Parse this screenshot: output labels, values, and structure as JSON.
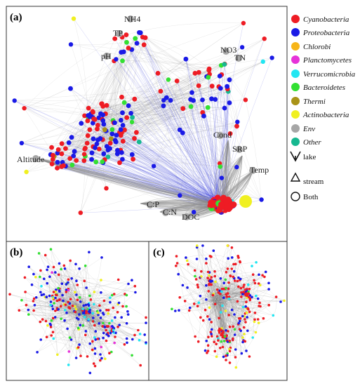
{
  "figure": {
    "panels": [
      {
        "id": "a",
        "label": "(a)"
      },
      {
        "id": "b",
        "label": "(b)"
      },
      {
        "id": "c",
        "label": "(c)"
      }
    ],
    "env_labels": [
      "NH4",
      "TP",
      "pH",
      "NO3",
      "TN",
      "Cond",
      "SRP",
      "Temp",
      "Altitude",
      "C:P",
      "C:N",
      "DOC"
    ],
    "legend": {
      "groups": [
        {
          "label": "Cyanobacteria",
          "color": "#ee1c24",
          "italic": true
        },
        {
          "label": "Proteobacteria",
          "color": "#1a1ae6",
          "italic": true
        },
        {
          "label": "Chlorobi",
          "color": "#f7b519",
          "italic": true
        },
        {
          "label": "Planctomycetes",
          "color": "#e633d9",
          "italic": true
        },
        {
          "label": "Verrucomicrobia",
          "color": "#22e6f2",
          "italic": true
        },
        {
          "label": "Bacteroidetes",
          "color": "#33e033",
          "italic": true
        },
        {
          "label": "Thermi",
          "color": "#a99318",
          "italic": true
        },
        {
          "label": "Actinobacteria",
          "color": "#f0f021",
          "italic": true
        },
        {
          "label": "Env",
          "color": "#a6a6a6",
          "italic": true
        },
        {
          "label": "Other",
          "color": "#17b890",
          "italic": true
        }
      ],
      "shapes": [
        {
          "label": "lake",
          "icon": "down-triangle-icon"
        },
        {
          "label": "stream",
          "icon": "up-triangle-icon"
        },
        {
          "label": "Both",
          "icon": "circle-icon"
        }
      ]
    }
  }
}
